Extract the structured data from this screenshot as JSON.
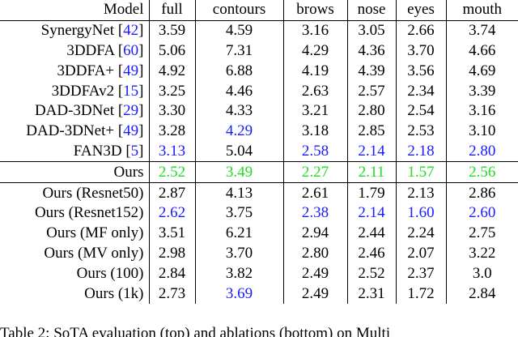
{
  "table": {
    "header": [
      "Model",
      "full",
      "contours",
      "brows",
      "nose",
      "eyes",
      "mouth"
    ],
    "rows": [
      {
        "name": "SynergyNet",
        "cite": "42",
        "values": [
          "3.59",
          "4.59",
          "3.16",
          "3.05",
          "2.66",
          "3.74"
        ],
        "colors": [
          "",
          "",
          "",
          "",
          "",
          ""
        ]
      },
      {
        "name": "3DDFA",
        "cite": "60",
        "values": [
          "5.06",
          "7.31",
          "4.29",
          "4.36",
          "3.70",
          "4.66"
        ],
        "colors": [
          "",
          "",
          "",
          "",
          "",
          ""
        ]
      },
      {
        "name": "3DDFA+",
        "cite": "49",
        "values": [
          "4.92",
          "6.88",
          "4.19",
          "4.39",
          "3.56",
          "4.69"
        ],
        "colors": [
          "",
          "",
          "",
          "",
          "",
          ""
        ]
      },
      {
        "name": "3DDFAv2",
        "cite": "15",
        "values": [
          "3.25",
          "4.46",
          "2.63",
          "2.57",
          "2.34",
          "3.39"
        ],
        "colors": [
          "",
          "",
          "",
          "",
          "",
          ""
        ]
      },
      {
        "name": "DAD-3DNet",
        "cite": "29",
        "values": [
          "3.30",
          "4.33",
          "3.21",
          "2.80",
          "2.54",
          "3.16"
        ],
        "colors": [
          "",
          "",
          "",
          "",
          "",
          ""
        ]
      },
      {
        "name": "DAD-3DNet+",
        "cite": "49",
        "values": [
          "3.28",
          "4.29",
          "3.18",
          "2.85",
          "2.53",
          "3.10"
        ],
        "colors": [
          "",
          "blue",
          "",
          "",
          "",
          ""
        ]
      },
      {
        "name": "FAN3D",
        "cite": "5",
        "values": [
          "3.13",
          "5.04",
          "2.58",
          "2.14",
          "2.18",
          "2.80"
        ],
        "colors": [
          "blue",
          "",
          "blue",
          "blue",
          "blue",
          "blue"
        ]
      }
    ],
    "ours": {
      "name": "Ours",
      "values": [
        "2.52",
        "3.49",
        "2.27",
        "2.11",
        "1.57",
        "2.56"
      ],
      "colors": [
        "green",
        "green",
        "green",
        "green",
        "green",
        "green"
      ]
    },
    "ablations": [
      {
        "name": "Ours (Resnet50)",
        "values": [
          "2.87",
          "4.13",
          "2.61",
          "1.79",
          "2.13",
          "2.86"
        ],
        "colors": [
          "",
          "",
          "",
          "",
          "",
          ""
        ]
      },
      {
        "name": "Ours (Resnet152)",
        "values": [
          "2.62",
          "3.75",
          "2.38",
          "2.14",
          "1.60",
          "2.60"
        ],
        "colors": [
          "blue",
          "",
          "blue",
          "blue",
          "blue",
          "blue"
        ]
      },
      {
        "name": "Ours (MF only)",
        "values": [
          "3.51",
          "6.21",
          "2.94",
          "2.44",
          "2.24",
          "2.75"
        ],
        "colors": [
          "",
          "",
          "",
          "",
          "",
          ""
        ]
      },
      {
        "name": "Ours (MV only)",
        "values": [
          "2.98",
          "3.70",
          "2.80",
          "2.46",
          "2.07",
          "3.22"
        ],
        "colors": [
          "",
          "",
          "",
          "",
          "",
          ""
        ]
      },
      {
        "name": "Ours (100)",
        "values": [
          "2.84",
          "3.82",
          "2.49",
          "2.52",
          "2.37",
          "3.0"
        ],
        "colors": [
          "",
          "",
          "",
          "",
          "",
          ""
        ]
      },
      {
        "name": "Ours (1k)",
        "values": [
          "2.73",
          "3.69",
          "2.49",
          "2.31",
          "1.72",
          "2.84"
        ],
        "colors": [
          "",
          "blue",
          "",
          "",
          "",
          ""
        ]
      }
    ]
  },
  "caption": "Table 2: SoTA evaluation (top) and ablations (bottom) on Multi"
}
